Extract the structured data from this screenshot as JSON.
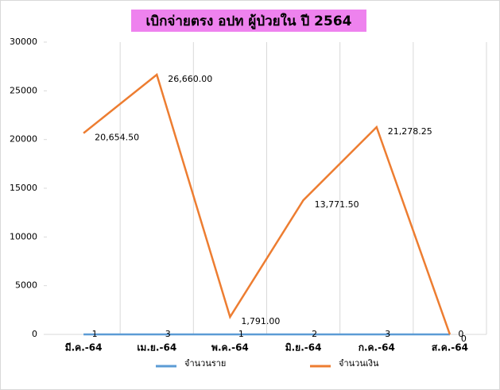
{
  "chart_data": {
    "type": "line",
    "title": "เบิกจ่ายตรง อปท ผู้ป่วยใน ปี 2564",
    "categories": [
      "มี.ค.-64",
      "เม.ย.-64",
      "พ.ค.-64",
      "มิ.ย.-64",
      "ก.ค.-64",
      "ส.ค.-64"
    ],
    "series": [
      {
        "name": "จำนวนราย",
        "color": "#5b9bd5",
        "values": [
          1,
          3,
          1,
          2,
          3,
          0
        ]
      },
      {
        "name": "จำนวนเงิน",
        "color": "#ed7d31",
        "values": [
          20654.5,
          26660,
          1791,
          13771.5,
          21278.25,
          0
        ],
        "value_labels": [
          "20,654.50",
          "26,660.00",
          "1,791.00",
          "13,771.50",
          "21,278.25",
          "0"
        ]
      }
    ],
    "ylim": [
      0,
      30000
    ],
    "yticks": [
      0,
      5000,
      10000,
      15000,
      20000,
      25000,
      30000
    ],
    "legend": "bottom"
  }
}
